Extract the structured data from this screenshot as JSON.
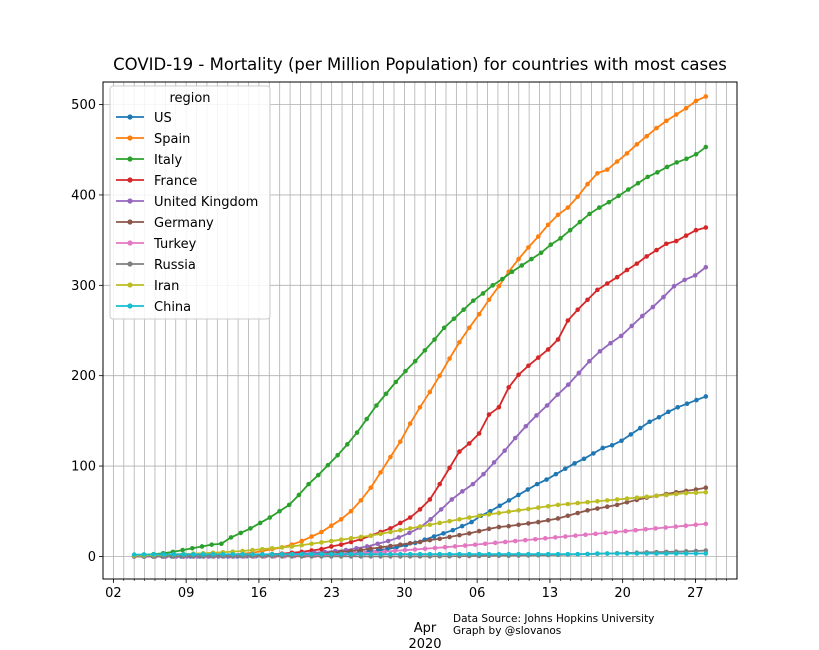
{
  "chart_data": {
    "type": "line",
    "title": "COVID-19 - Mortality (per Million Population) for countries with most cases",
    "xlabel_month": "Apr",
    "xlabel_year": "2020",
    "x_start": "2020-03-04",
    "x_end": "2020-04-28",
    "x_ticks": [
      {
        "date": "2020-03-02",
        "label": "02"
      },
      {
        "date": "2020-03-09",
        "label": "09"
      },
      {
        "date": "2020-03-16",
        "label": "16"
      },
      {
        "date": "2020-03-23",
        "label": "23"
      },
      {
        "date": "2020-03-30",
        "label": "30"
      },
      {
        "date": "2020-04-06",
        "label": "06"
      },
      {
        "date": "2020-04-13",
        "label": "13"
      },
      {
        "date": "2020-04-20",
        "label": "20"
      },
      {
        "date": "2020-04-27",
        "label": "27"
      }
    ],
    "y_ticks": [
      "0",
      "100",
      "200",
      "300",
      "400",
      "500"
    ],
    "ylim": [
      -25,
      525
    ],
    "xlim": [
      "2020-03-01",
      "2020-05-01"
    ],
    "grid": true,
    "legend_title": "region",
    "legend_position": "top-left",
    "source_line1": "Data Source: Johns Hopkins University",
    "source_line2": "Graph by @slovanos",
    "series": [
      {
        "name": "US",
        "color": "#1f77b4",
        "values": [
          0,
          0,
          0,
          0,
          0,
          0,
          0,
          0,
          0,
          0,
          0.1,
          0.1,
          0.2,
          0.3,
          0.4,
          0.5,
          0.6,
          0.8,
          1,
          1.5,
          2,
          2.5,
          3,
          3.5,
          4,
          5,
          6.5,
          8,
          10,
          12.5,
          15,
          18.5,
          22,
          25.5,
          29,
          33.5,
          38,
          45,
          50,
          56,
          62,
          68,
          74,
          80,
          85,
          91,
          97,
          103,
          108,
          114,
          120,
          123,
          128,
          135,
          142,
          149,
          154,
          160,
          165,
          169,
          173,
          177
        ]
      },
      {
        "name": "Spain",
        "color": "#ff7f0e",
        "values": [
          0,
          0,
          0,
          0.1,
          0.1,
          0.2,
          0.4,
          0.6,
          1,
          1.5,
          2,
          3,
          4,
          6,
          8,
          10,
          13,
          17,
          22,
          27,
          34,
          41,
          50,
          62,
          76,
          93,
          110,
          127,
          147,
          165,
          182,
          200,
          219,
          237,
          253,
          268,
          284,
          299,
          315,
          329,
          342,
          354,
          367,
          378,
          386,
          398,
          412,
          424,
          428,
          437,
          446,
          456,
          465,
          474,
          482,
          489,
          496,
          504,
          509
        ]
      },
      {
        "name": "Italy",
        "color": "#2ca02c",
        "values": [
          1,
          2,
          2.5,
          3.5,
          5,
          7,
          9,
          11,
          13,
          14,
          21,
          26,
          31,
          37,
          43,
          50,
          57,
          68,
          80,
          90,
          101,
          112,
          124,
          137,
          152,
          167,
          180,
          193,
          205,
          216,
          228,
          240,
          253,
          263,
          273,
          283,
          291,
          300,
          307,
          315,
          322,
          329,
          336,
          345,
          352,
          361,
          370,
          379,
          386,
          392,
          399,
          406,
          413,
          420,
          425,
          431,
          436,
          440,
          445,
          453
        ]
      },
      {
        "name": "France",
        "color": "#d62728",
        "values": [
          0,
          0,
          0,
          0,
          0.1,
          0.1,
          0.2,
          0.3,
          0.5,
          0.6,
          0.8,
          1,
          1.3,
          2,
          2.5,
          3,
          4,
          5,
          6.5,
          8,
          11,
          13,
          16,
          19,
          23,
          27,
          31,
          37,
          43,
          52,
          63,
          80,
          98,
          116,
          125,
          136,
          157,
          165,
          187,
          201,
          211,
          220,
          229,
          240,
          261,
          273,
          284,
          295,
          302,
          309,
          317,
          324,
          332,
          339,
          346,
          349,
          355,
          361,
          364
        ]
      },
      {
        "name": "United Kingdom",
        "color": "#9467bd",
        "values": [
          0,
          0,
          0,
          0,
          0,
          0.1,
          0.1,
          0.1,
          0.2,
          0.3,
          0.5,
          0.7,
          1,
          1.5,
          2,
          2.5,
          3,
          4,
          5,
          6,
          7,
          9,
          11,
          14,
          17,
          21,
          26,
          32,
          41,
          52,
          63,
          72,
          80,
          91,
          104,
          117,
          131,
          144,
          156,
          167,
          179,
          190,
          203,
          216,
          227,
          236,
          244,
          255,
          266,
          276,
          287,
          299,
          306,
          311,
          320
        ]
      },
      {
        "name": "Germany",
        "color": "#8c564b",
        "values": [
          0,
          0,
          0,
          0,
          0,
          0,
          0,
          0,
          0.1,
          0.1,
          0.1,
          0.2,
          0.3,
          0.5,
          0.7,
          1,
          1.3,
          1.7,
          2.3,
          3,
          4,
          5,
          6,
          7,
          8.5,
          10,
          11.5,
          13,
          14.5,
          16,
          18,
          19.5,
          21.5,
          23.5,
          25.5,
          28,
          30.5,
          32.5,
          33.5,
          35,
          36.5,
          38,
          40,
          42,
          45,
          48,
          51,
          53,
          55,
          57,
          60,
          62.5,
          65,
          67,
          69,
          71,
          72.5,
          74,
          76
        ]
      },
      {
        "name": "Turkey",
        "color": "#e377c2",
        "values": [
          0,
          0,
          0,
          0,
          0,
          0,
          0,
          0,
          0,
          0,
          0,
          0,
          0,
          0,
          0.1,
          0.2,
          0.4,
          0.6,
          0.9,
          1.3,
          1.8,
          2.4,
          3,
          3.7,
          4.5,
          5.3,
          6.1,
          6.9,
          7.7,
          8.5,
          9.3,
          10.2,
          11.1,
          12,
          13,
          14,
          15,
          16,
          17,
          18,
          19,
          20,
          21,
          22,
          23,
          24,
          25,
          26,
          27,
          28,
          29,
          30,
          31,
          32,
          33,
          34,
          35,
          36
        ]
      },
      {
        "name": "Russia",
        "color": "#7f7f7f",
        "values": [
          0,
          0,
          0,
          0,
          0,
          0,
          0,
          0,
          0,
          0,
          0,
          0,
          0,
          0,
          0,
          0,
          0,
          0,
          0,
          0,
          0,
          0,
          0,
          0,
          0,
          0,
          0,
          0,
          0.1,
          0.1,
          0.1,
          0.2,
          0.2,
          0.3,
          0.4,
          0.5,
          0.6,
          0.7,
          0.8,
          1,
          1.1,
          1.3,
          1.5,
          1.7,
          2,
          2.3,
          2.6,
          2.9,
          3.2,
          3.5,
          3.8,
          4.1,
          4.4,
          4.7,
          5,
          5.3,
          5.6,
          6,
          6.5
        ]
      },
      {
        "name": "Iran",
        "color": "#bcbd22",
        "values": [
          1,
          1.2,
          1.5,
          1.8,
          2.2,
          2.6,
          3,
          3.5,
          4,
          4.6,
          5.3,
          6,
          7,
          8,
          9,
          10,
          11,
          12.5,
          14,
          15.5,
          17,
          18.5,
          20,
          21.5,
          23,
          25,
          27,
          29,
          31,
          33,
          35,
          37,
          39,
          41,
          43,
          45,
          46.5,
          48,
          49.5,
          51,
          52.5,
          54,
          55.5,
          57,
          58,
          59,
          60,
          61,
          62,
          63,
          64,
          65,
          66,
          67,
          68,
          69,
          70,
          70.5,
          71
        ]
      },
      {
        "name": "China",
        "color": "#17becf",
        "values": [
          2,
          2.1,
          2.2,
          2.2,
          2.3,
          2.3,
          2.3,
          2.3,
          2.4,
          2.4,
          2.4,
          2.4,
          2.4,
          2.4,
          2.4,
          2.5,
          2.5,
          2.5,
          2.5,
          2.5,
          2.5,
          2.5,
          2.5,
          2.5,
          2.5,
          2.5,
          2.5,
          2.5,
          2.5,
          2.5,
          2.5,
          2.5,
          2.5,
          2.5,
          2.5,
          2.5,
          2.5,
          2.5,
          2.5,
          2.5,
          2.5,
          2.5,
          2.5,
          2.5,
          2.5,
          2.5,
          2.5,
          3.2,
          3.2,
          3.2,
          3.2,
          3.2,
          3.2,
          3.2,
          3.2,
          3.2,
          3.2,
          3.2,
          3.2
        ]
      }
    ]
  }
}
